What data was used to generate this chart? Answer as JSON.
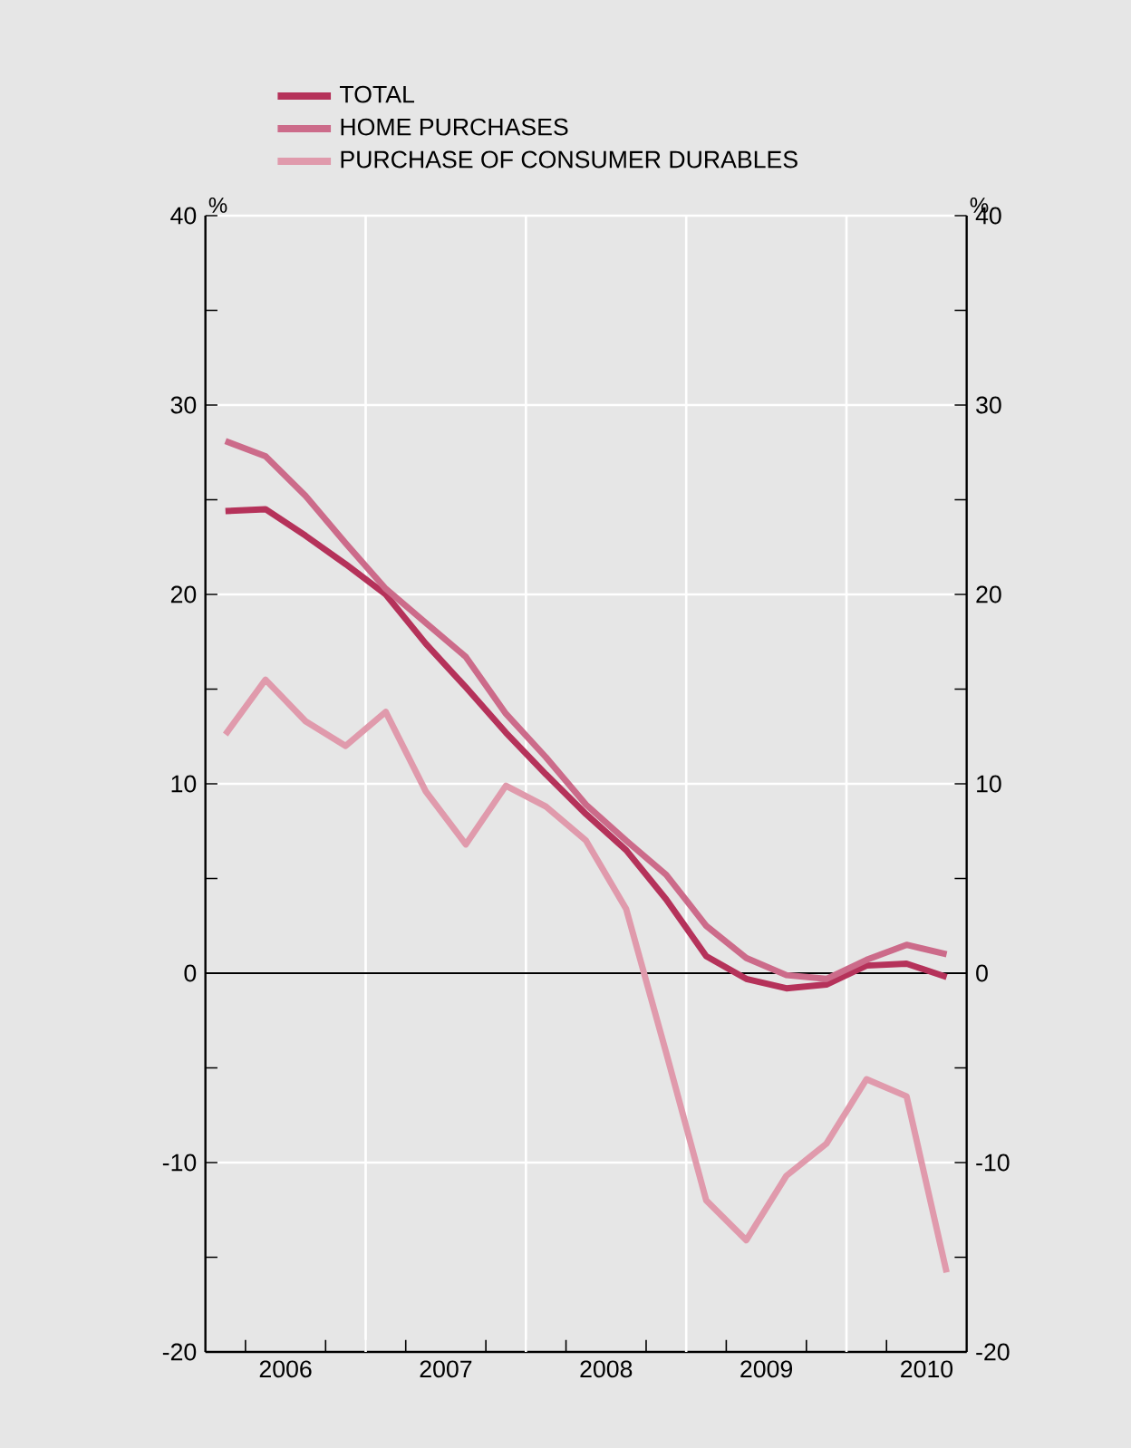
{
  "chart_data": {
    "type": "line",
    "x": [
      2006.125,
      2006.375,
      2006.625,
      2006.875,
      2007.125,
      2007.375,
      2007.625,
      2007.875,
      2008.125,
      2008.375,
      2008.625,
      2008.875,
      2009.125,
      2009.375,
      2009.625,
      2009.875,
      2010.125,
      2010.375,
      2010.625
    ],
    "series": [
      {
        "name": "TOTAL",
        "color": "#b5325a",
        "values": [
          24.4,
          24.5,
          23.1,
          21.6,
          20.0,
          17.4,
          15.1,
          12.7,
          10.5,
          8.4,
          6.5,
          3.9,
          0.9,
          -0.3,
          -0.8,
          -0.6,
          0.4,
          0.5,
          -0.2
        ]
      },
      {
        "name": "HOME PURCHASES",
        "color": "#cc6b8a",
        "values": [
          28.1,
          27.3,
          25.2,
          22.7,
          20.3,
          18.5,
          16.7,
          13.7,
          11.4,
          8.9,
          7.0,
          5.2,
          2.5,
          0.8,
          -0.1,
          -0.3,
          0.7,
          1.5,
          1.0
        ]
      },
      {
        "name": "PURCHASE OF CONSUMER DURABLES",
        "color": "#e09aac",
        "values": [
          12.6,
          15.5,
          13.3,
          12.0,
          13.8,
          9.6,
          6.8,
          9.9,
          8.8,
          7.0,
          3.4,
          -4.2,
          -12.0,
          -14.1,
          -10.7,
          -9.0,
          -5.6,
          -6.5,
          -15.8
        ]
      }
    ],
    "xlim": [
      2006,
      2010.75
    ],
    "xticks": [
      {
        "value": 2006.5,
        "label": "2006"
      },
      {
        "value": 2007.5,
        "label": "2007"
      },
      {
        "value": 2008.5,
        "label": "2008"
      },
      {
        "value": 2009.5,
        "label": "2009"
      },
      {
        "value": 2010.5,
        "label": "2010"
      },
      {
        "value": 2006.25,
        "label": null
      },
      {
        "value": 2006.75,
        "label": null
      },
      {
        "value": 2007,
        "label": null
      },
      {
        "value": 2007.25,
        "label": null
      },
      {
        "value": 2007.75,
        "label": null
      },
      {
        "value": 2008,
        "label": null
      },
      {
        "value": 2008.25,
        "label": null
      },
      {
        "value": 2008.75,
        "label": null
      },
      {
        "value": 2009,
        "label": null
      },
      {
        "value": 2009.25,
        "label": null
      },
      {
        "value": 2009.75,
        "label": null
      },
      {
        "value": 2010,
        "label": null
      },
      {
        "value": 2010.25,
        "label": null
      }
    ],
    "ylim": [
      -20,
      40
    ],
    "yticks": [
      -20,
      -10,
      0,
      10,
      20,
      30,
      40,
      {
        "value": -15,
        "label": null
      },
      {
        "value": -5,
        "label": null
      },
      {
        "value": 5,
        "label": null
      },
      {
        "value": 15,
        "label": null
      },
      {
        "value": 25,
        "label": null
      },
      {
        "value": 35,
        "label": null
      }
    ],
    "y2lim": [
      -20,
      40
    ],
    "y2ticks": [
      -20,
      -10,
      0,
      10,
      20,
      30,
      40,
      {
        "value": -15,
        "label": null
      },
      {
        "value": -5,
        "label": null
      },
      {
        "value": 5,
        "label": null
      },
      {
        "value": 15,
        "label": null
      },
      {
        "value": 25,
        "label": null
      },
      {
        "value": 35,
        "label": null
      }
    ],
    "ylabel": "%",
    "y2label": "%",
    "grid": "y",
    "legend": "top left",
    "line_style": "solid",
    "ref_lines": [
      {
        "axis": "x",
        "value": 2007,
        "color": "#ffffff"
      },
      {
        "axis": "x",
        "value": 2008,
        "color": "#ffffff"
      },
      {
        "axis": "x",
        "value": 2009,
        "color": "#ffffff"
      },
      {
        "axis": "x",
        "value": 2010,
        "color": "#ffffff"
      },
      {
        "axis": "y",
        "value": 0,
        "color": "#000000"
      }
    ]
  }
}
